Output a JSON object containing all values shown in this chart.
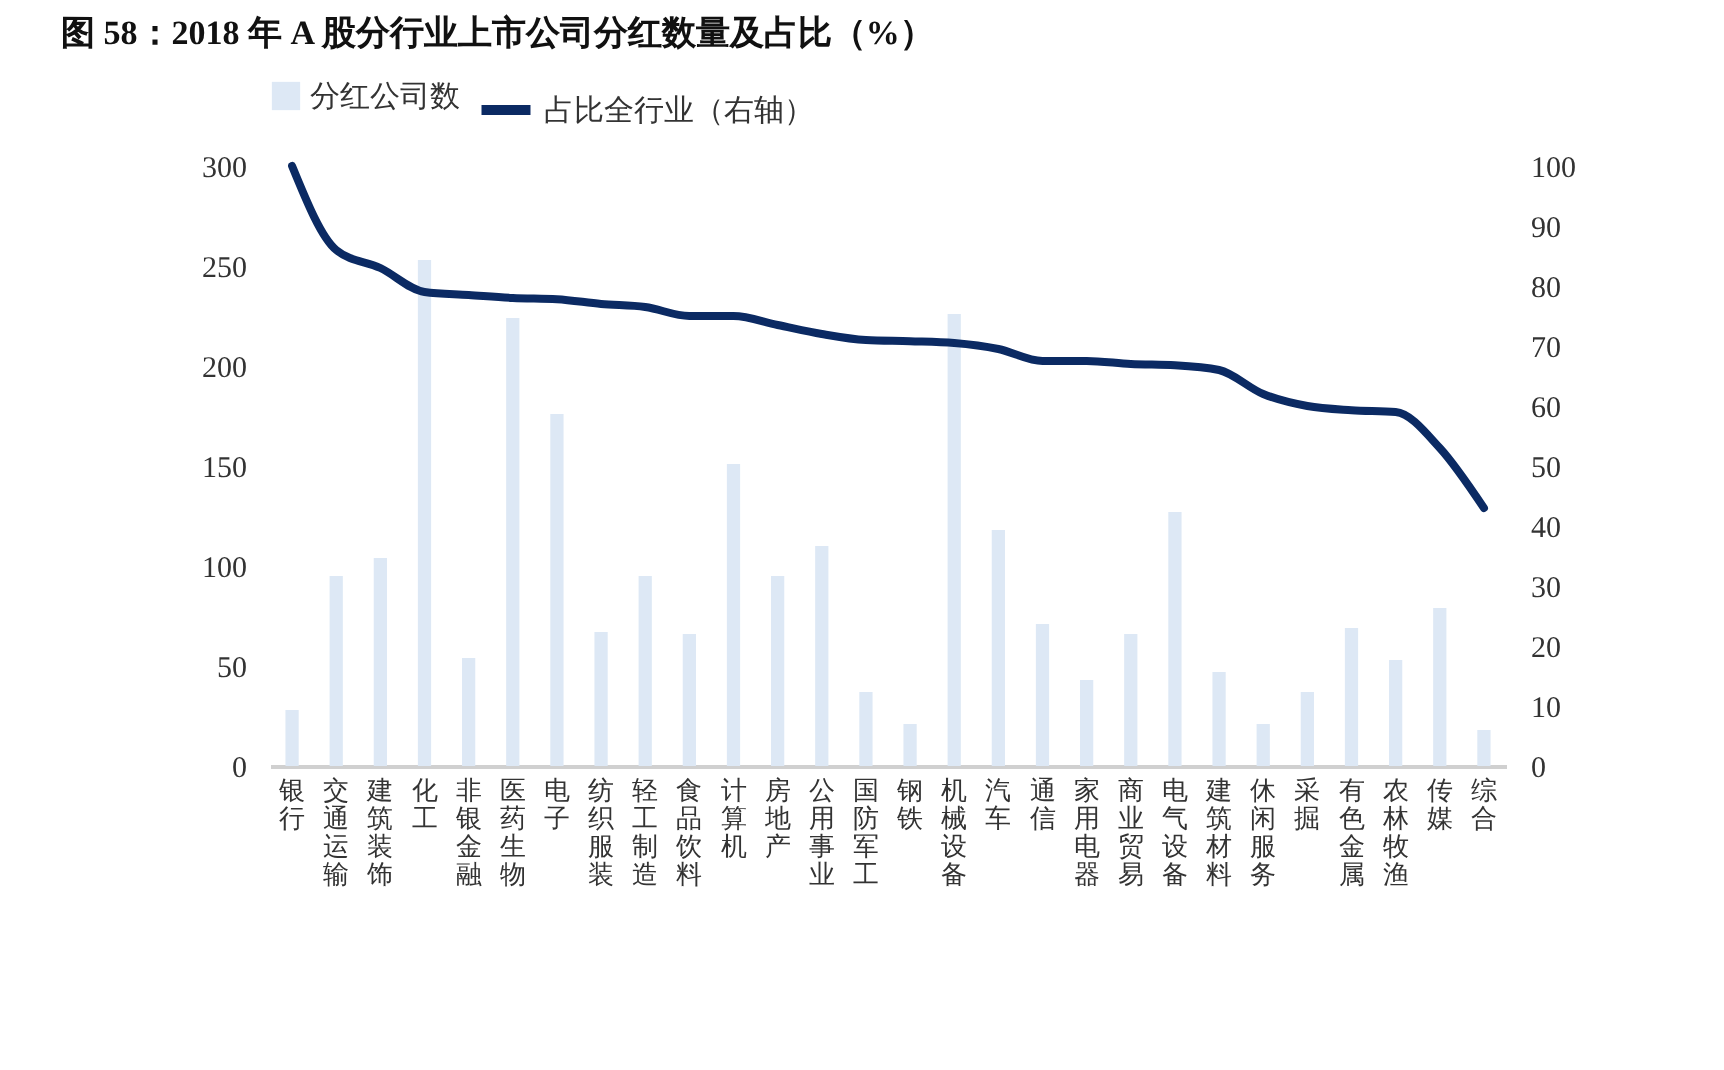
{
  "chart_data": {
    "type": "bar",
    "title": "图 58：2018 年 A 股分行业上市公司分红数量及占比（%）",
    "categories": [
      "银行",
      "交通运输",
      "建筑装饰",
      "化工",
      "非银金融",
      "医药生物",
      "电子",
      "纺织服装",
      "轻工制造",
      "食品饮料",
      "计算机",
      "房地产",
      "公用事业",
      "国防军工",
      "钢铁",
      "机械设备",
      "汽车",
      "通信",
      "家用电器",
      "商业贸易",
      "电气设备",
      "建筑材料",
      "休闲服务",
      "采掘",
      "有色金属",
      "农林牧渔",
      "传媒",
      "综合"
    ],
    "series": [
      {
        "name": "分红公司数",
        "color": "#dde8f5",
        "values": [
          28,
          95,
          104,
          253,
          54,
          224,
          176,
          67,
          95,
          66,
          151,
          95,
          110,
          37,
          21,
          226,
          118,
          71,
          43,
          66,
          127,
          47,
          21,
          37,
          69,
          53,
          79,
          18
        ]
      },
      {
        "name": "占比全行业（右轴）",
        "type": "line",
        "axis": "y2",
        "color": "#0b2a63",
        "values": [
          100,
          86,
          83,
          79,
          78.5,
          78,
          77.8,
          77,
          76.5,
          75,
          75,
          73.5,
          72,
          71,
          70.8,
          70.5,
          69.5,
          67.5,
          67.5,
          67,
          66.8,
          66,
          62,
          60,
          59.3,
          59,
          53,
          43
        ]
      }
    ],
    "ylim": [
      0,
      300
    ],
    "yticks": [
      0,
      50,
      100,
      150,
      200,
      250,
      300
    ],
    "y2lim": [
      0,
      100
    ],
    "y2ticks": [
      0,
      10,
      20,
      30,
      40,
      50,
      60,
      70,
      80,
      90,
      100
    ],
    "grid": false,
    "legend": "top"
  }
}
